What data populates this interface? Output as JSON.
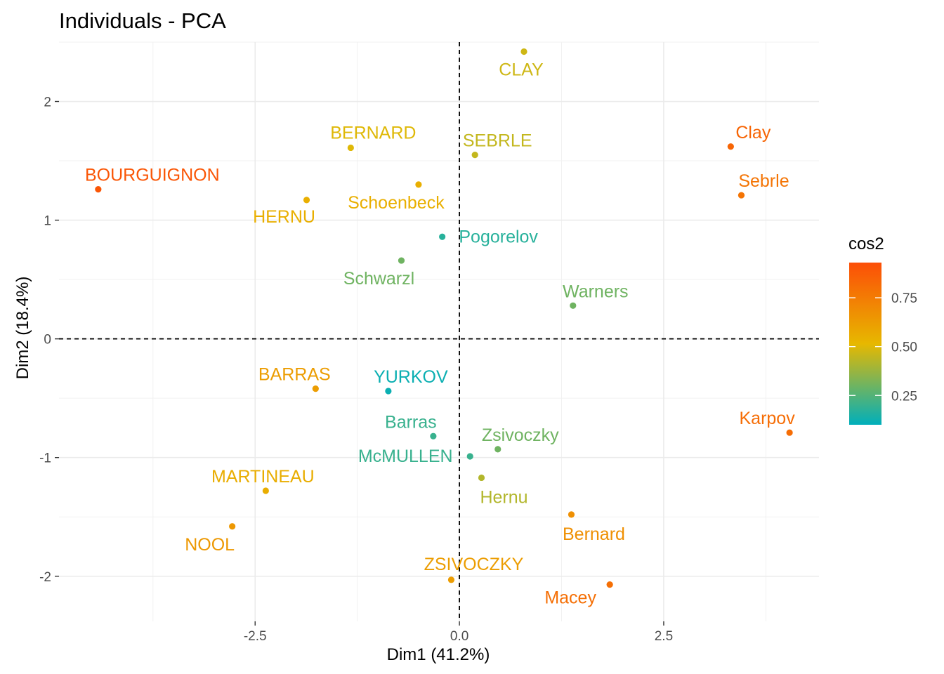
{
  "chart_data": {
    "type": "scatter",
    "title": "Individuals - PCA",
    "xlabel": "Dim1 (41.2%)",
    "ylabel": "Dim2 (18.4%)",
    "xlim": [
      -4.9,
      4.4
    ],
    "ylim": [
      -2.38,
      2.5
    ],
    "x_ticks": [
      -2.5,
      0.0,
      2.5
    ],
    "x_tick_labels": [
      "-2.5",
      "0.0",
      "2.5"
    ],
    "y_ticks": [
      -2,
      -1,
      0,
      1,
      2
    ],
    "y_tick_labels": [
      "-2",
      "-1",
      "0",
      "1",
      "2"
    ],
    "grid": true,
    "reference_lines": {
      "x": 0,
      "y": 0,
      "style": "dashed"
    },
    "color_variable": "cos2",
    "legend": {
      "title": "cos2",
      "position": "right",
      "range": [
        0.1,
        0.93
      ],
      "ticks": [
        0.25,
        0.5,
        0.75
      ],
      "tick_labels": [
        "0.25",
        "0.50",
        "0.75"
      ],
      "colors": [
        "#00AFBB",
        "#E7B800",
        "#FC4E07"
      ]
    },
    "points": [
      {
        "name": "SEBRLE",
        "x": 0.19,
        "y": 1.55,
        "cos2": 0.45
      },
      {
        "name": "CLAY",
        "x": 0.79,
        "y": 2.42,
        "cos2": 0.47
      },
      {
        "name": "BERNARD",
        "x": -1.33,
        "y": 1.61,
        "cos2": 0.5
      },
      {
        "name": "YURKOV",
        "x": -0.87,
        "y": -0.44,
        "cos2": 0.12
      },
      {
        "name": "ZSIVOCZKY",
        "x": -0.1,
        "y": -2.03,
        "cos2": 0.62
      },
      {
        "name": "McMULLEN",
        "x": 0.13,
        "y": -0.99,
        "cos2": 0.2
      },
      {
        "name": "MARTINEAU",
        "x": -2.37,
        "y": -1.28,
        "cos2": 0.56
      },
      {
        "name": "HERNU",
        "x": -1.87,
        "y": 1.17,
        "cos2": 0.55
      },
      {
        "name": "BARRAS",
        "x": -1.76,
        "y": -0.42,
        "cos2": 0.62
      },
      {
        "name": "NOOL",
        "x": -2.78,
        "y": -1.58,
        "cos2": 0.64
      },
      {
        "name": "BOURGUIGNON",
        "x": -4.42,
        "y": 1.26,
        "cos2": 0.9
      },
      {
        "name": "Sebrle",
        "x": 3.45,
        "y": 1.21,
        "cos2": 0.78
      },
      {
        "name": "Clay",
        "x": 3.32,
        "y": 1.62,
        "cos2": 0.84
      },
      {
        "name": "Karpov",
        "x": 4.04,
        "y": -0.79,
        "cos2": 0.81
      },
      {
        "name": "Macey",
        "x": 1.84,
        "y": -2.07,
        "cos2": 0.8
      },
      {
        "name": "Warners",
        "x": 1.39,
        "y": 0.28,
        "cos2": 0.3
      },
      {
        "name": "Zsivoczky",
        "x": 0.47,
        "y": -0.93,
        "cos2": 0.3
      },
      {
        "name": "Hernu",
        "x": 0.27,
        "y": -1.17,
        "cos2": 0.42
      },
      {
        "name": "Bernard",
        "x": 1.37,
        "y": -1.48,
        "cos2": 0.67
      },
      {
        "name": "Schwarzl",
        "x": -0.71,
        "y": 0.66,
        "cos2": 0.3
      },
      {
        "name": "Pogorelov",
        "x": -0.21,
        "y": 0.86,
        "cos2": 0.17
      },
      {
        "name": "Schoenbeck",
        "x": -0.5,
        "y": 1.3,
        "cos2": 0.55
      },
      {
        "name": "Barras",
        "x": -0.32,
        "y": -0.82,
        "cos2": 0.2
      }
    ]
  }
}
